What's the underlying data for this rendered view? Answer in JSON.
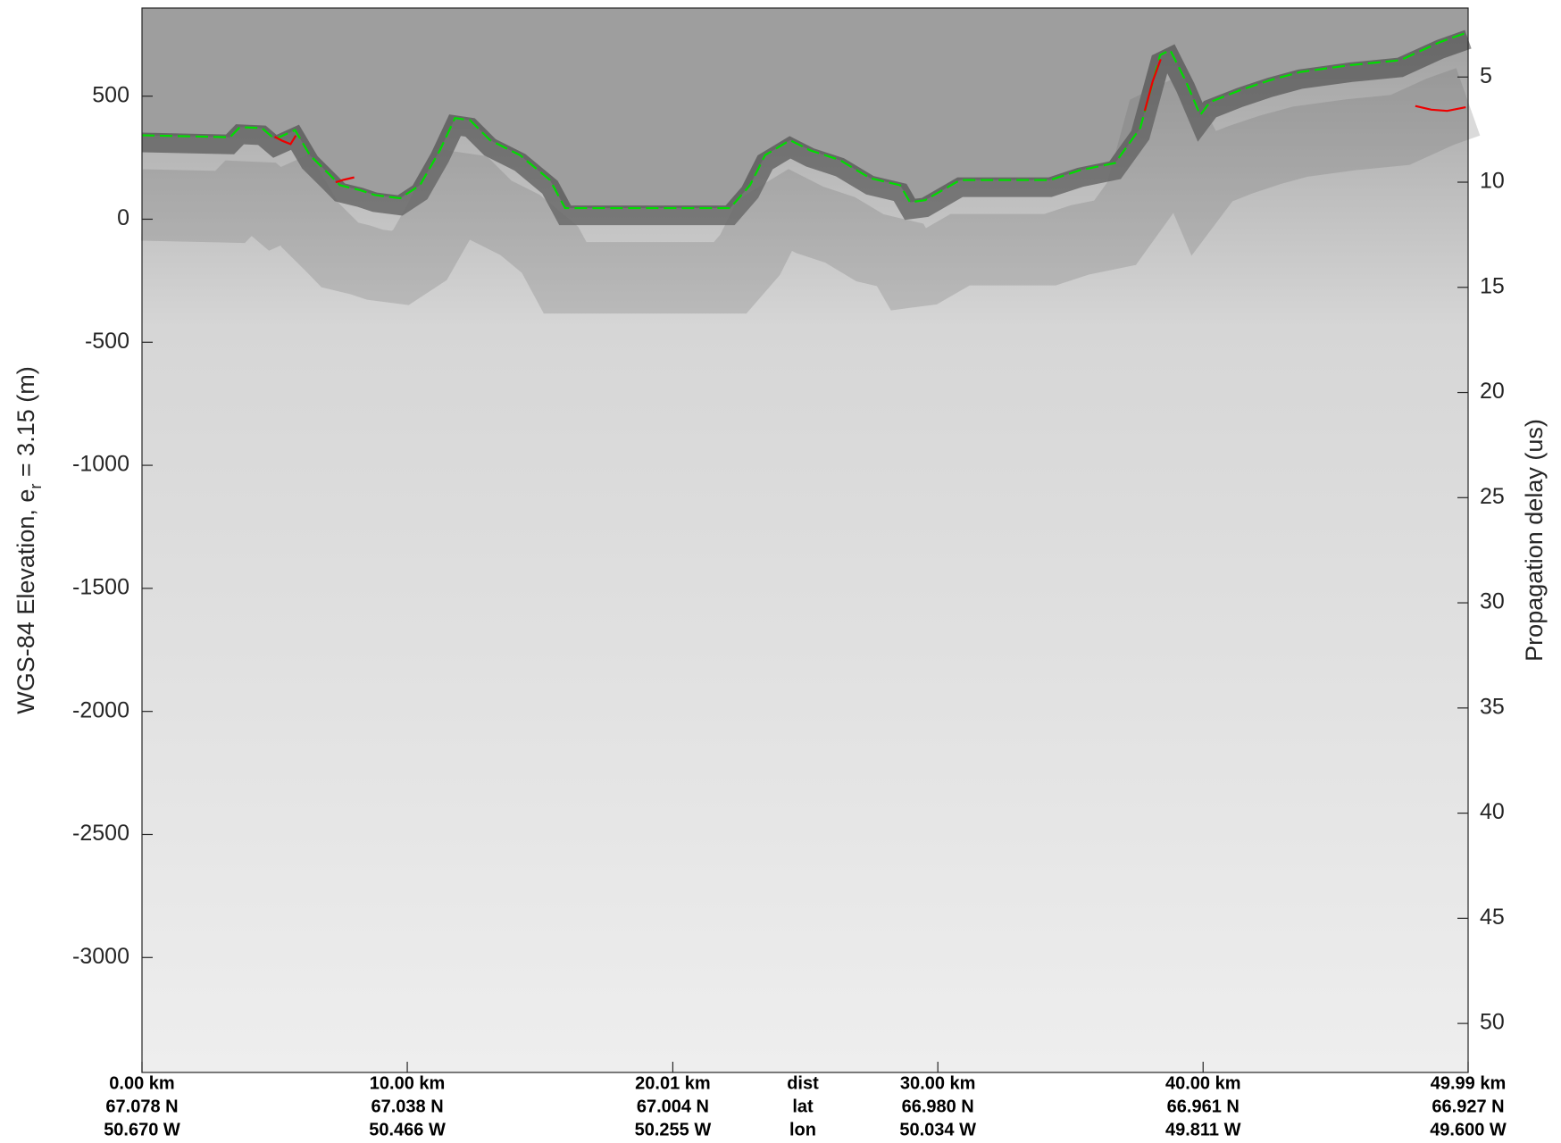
{
  "chart_data": {
    "type": "line",
    "ylabel": [
      "WGS-84 Elevation, e",
      "r",
      " = 3.15 (m)"
    ],
    "y2label": "Propagation delay (us)",
    "xlim": [
      0,
      49.99
    ],
    "xticks": [
      {
        "value": 0,
        "label": "0.00 km"
      },
      {
        "value": 10,
        "label": "10.00 km"
      },
      {
        "value": 20.01,
        "label": "20.01 km"
      },
      {
        "value": 30,
        "label": "30.00 km"
      },
      {
        "value": 40,
        "label": "40.00 km"
      },
      {
        "value": 49.99,
        "label": "49.99 km"
      }
    ],
    "xtick_lat": [
      "67.078 N",
      "67.038 N",
      "67.004 N",
      "66.980 N",
      "66.961 N",
      "66.927 N"
    ],
    "xtick_lon": [
      "50.670 W",
      "50.466 W",
      "50.255 W",
      "50.034 W",
      "49.811 W",
      "49.600 W"
    ],
    "xtick_row_names": [
      "dist",
      "lat",
      "lon"
    ],
    "ylim": [
      -3467,
      858
    ],
    "yticks": [
      500,
      0,
      -500,
      -1000,
      -1500,
      -2000,
      -2500,
      -3000
    ],
    "y2lim": [
      52.33,
      1.72
    ],
    "y2ticks": [
      5,
      10,
      15,
      20,
      25,
      30,
      35,
      40,
      45,
      50
    ],
    "series": [
      {
        "color": "#00dd00",
        "dashed": true,
        "x": [
          0,
          3.32,
          3.69,
          4.52,
          5.01,
          5.77,
          6.33,
          7.09,
          7.46,
          8.22,
          8.78,
          9.73,
          10.48,
          11.23,
          11.8,
          12.37,
          13.12,
          14.25,
          15.38,
          15.95,
          17.27,
          21.04,
          22.17,
          22.92,
          23.49,
          24.43,
          25.18,
          26.31,
          27.44,
          28.58,
          28.95,
          29.52,
          30.84,
          34.23,
          35.36,
          36.68,
          37.63,
          38.38,
          38.76,
          39.33,
          39.89,
          40.26,
          41.39,
          42.53,
          43.66,
          45.55,
          47.43,
          48.94,
          49.99
        ],
        "values": [
          341,
          333,
          374,
          370,
          325,
          362,
          260,
          179,
          138,
          118,
          98,
          85,
          138,
          280,
          411,
          402,
          321,
          260,
          159,
          45,
          45,
          45,
          45,
          138,
          260,
          321,
          280,
          240,
          167,
          138,
          69,
          77,
          159,
          159,
          199,
          228,
          370,
          667,
          687,
          565,
          423,
          476,
          524,
          565,
          598,
          626,
          646,
          720,
          760
        ]
      },
      {
        "color": "#ee0000",
        "dashed": false,
        "x": [
          5.0,
          5.3,
          5.6,
          5.8,
          null,
          7.3,
          7.6,
          8.0,
          null,
          37.8,
          38.1,
          38.4,
          null,
          48.0,
          48.6,
          49.2,
          49.9
        ],
        "values": [
          335,
          318,
          305,
          340,
          null,
          150,
          160,
          170,
          null,
          440,
          560,
          650,
          null,
          460,
          445,
          440,
          455
        ]
      }
    ]
  }
}
